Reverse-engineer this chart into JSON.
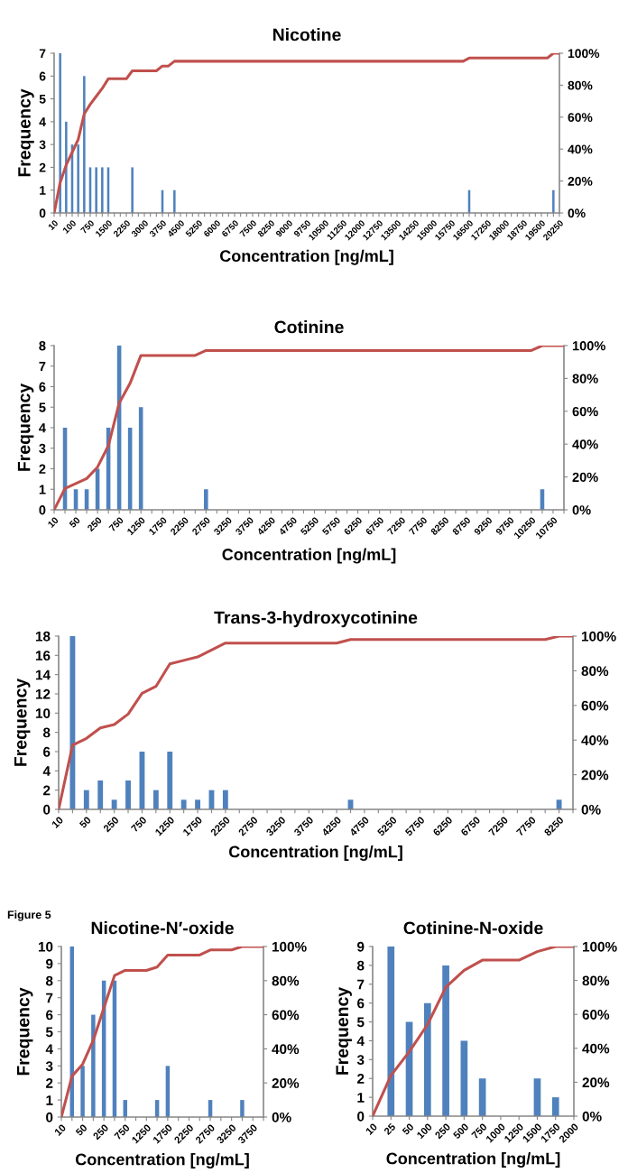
{
  "chart_data": [
    {
      "type": "bar",
      "title": "Nicotine",
      "xlabel": "Concentration [ng/mL]",
      "ylabel": "Frequency",
      "categories": [
        "10",
        null,
        null,
        "100",
        null,
        null,
        "750",
        null,
        null,
        "1500",
        null,
        null,
        "2250",
        null,
        null,
        "3000",
        null,
        null,
        "3750",
        null,
        null,
        "4500",
        null,
        null,
        "5250",
        null,
        null,
        "6000",
        null,
        null,
        "6750",
        null,
        null,
        "7500",
        null,
        null,
        "8250",
        null,
        null,
        "9000",
        null,
        null,
        "9750",
        null,
        null,
        "10500",
        null,
        null,
        "11250",
        null,
        null,
        "12000",
        null,
        null,
        "12750",
        null,
        null,
        "13500",
        null,
        null,
        "14250",
        null,
        null,
        "15000",
        null,
        null,
        "15750",
        null,
        null,
        "16500",
        null,
        null,
        "17250",
        null,
        null,
        "18000",
        null,
        null,
        "18750",
        null,
        null,
        "19500",
        null,
        null,
        "20250"
      ],
      "series": [
        {
          "color": "#4f81bd",
          "values": [
            0,
            7,
            4,
            3,
            3,
            6,
            2,
            2,
            2,
            2,
            0,
            0,
            0,
            2,
            0,
            0,
            0,
            0,
            1,
            0,
            1,
            0,
            0,
            0,
            0,
            0,
            0,
            0,
            0,
            0,
            0,
            0,
            0,
            0,
            0,
            0,
            0,
            0,
            0,
            0,
            0,
            0,
            0,
            0,
            0,
            0,
            0,
            0,
            0,
            0,
            0,
            0,
            0,
            0,
            0,
            0,
            0,
            0,
            0,
            0,
            0,
            0,
            0,
            0,
            0,
            0,
            0,
            0,
            0,
            1,
            0,
            0,
            0,
            0,
            0,
            0,
            0,
            0,
            0,
            0,
            0,
            0,
            0,
            1,
            0
          ]
        },
        {
          "type": "line",
          "axis": "y2",
          "color": "#c0504d",
          "values": [
            0,
            19,
            30,
            38,
            46,
            62,
            68,
            73,
            78,
            84,
            84,
            84,
            84,
            89,
            89,
            89,
            89,
            89,
            92,
            92,
            95,
            95,
            95,
            95,
            95,
            95,
            95,
            95,
            95,
            95,
            95,
            95,
            95,
            95,
            95,
            95,
            95,
            95,
            95,
            95,
            95,
            95,
            95,
            95,
            95,
            95,
            95,
            95,
            95,
            95,
            95,
            95,
            95,
            95,
            95,
            95,
            95,
            95,
            95,
            95,
            95,
            95,
            95,
            95,
            95,
            95,
            95,
            95,
            95,
            97,
            97,
            97,
            97,
            97,
            97,
            97,
            97,
            97,
            97,
            97,
            97,
            97,
            97,
            100,
            100
          ]
        }
      ],
      "ylim": [
        0,
        7
      ],
      "yticks": [
        0,
        1,
        2,
        3,
        4,
        5,
        6,
        7
      ],
      "y2lim": [
        0,
        100
      ],
      "y2ticks": [
        {
          "value": 0,
          "label": "0%"
        },
        {
          "value": 20,
          "label": "20%"
        },
        {
          "value": 40,
          "label": "40%"
        },
        {
          "value": 60,
          "label": "60%"
        },
        {
          "value": 80,
          "label": "80%"
        },
        {
          "value": 100,
          "label": "100%"
        }
      ]
    },
    {
      "type": "bar",
      "title": "Cotinine",
      "xlabel": "Concentration [ng/mL]",
      "ylabel": "Frequency",
      "categories": [
        "10",
        null,
        "50",
        null,
        "250",
        null,
        "750",
        null,
        "1250",
        null,
        "1750",
        null,
        "2250",
        null,
        "2750",
        null,
        "3250",
        null,
        "3750",
        null,
        "4250",
        null,
        "4750",
        null,
        "5250",
        null,
        "5750",
        null,
        "6250",
        null,
        "6750",
        null,
        "7250",
        null,
        "7750",
        null,
        "8250",
        null,
        "8750",
        null,
        "9250",
        null,
        "9750",
        null,
        "10250",
        null,
        "10750",
        null
      ],
      "series": [
        {
          "color": "#4f81bd",
          "values": [
            0,
            4,
            1,
            1,
            2,
            4,
            8,
            4,
            5,
            0,
            0,
            0,
            0,
            0,
            1,
            0,
            0,
            0,
            0,
            0,
            0,
            0,
            0,
            0,
            0,
            0,
            0,
            0,
            0,
            0,
            0,
            0,
            0,
            0,
            0,
            0,
            0,
            0,
            0,
            0,
            0,
            0,
            0,
            0,
            0,
            1,
            0,
            0
          ]
        },
        {
          "type": "line",
          "axis": "y2",
          "color": "#c0504d",
          "values": [
            0,
            13,
            16,
            19,
            26,
            39,
            65,
            77,
            94,
            94,
            94,
            94,
            94,
            94,
            97,
            97,
            97,
            97,
            97,
            97,
            97,
            97,
            97,
            97,
            97,
            97,
            97,
            97,
            97,
            97,
            97,
            97,
            97,
            97,
            97,
            97,
            97,
            97,
            97,
            97,
            97,
            97,
            97,
            97,
            97,
            100,
            100,
            100
          ]
        }
      ],
      "ylim": [
        0,
        8
      ],
      "yticks": [
        0,
        1,
        2,
        3,
        4,
        5,
        6,
        7,
        8
      ],
      "y2lim": [
        0,
        100
      ],
      "y2ticks": [
        {
          "value": 0,
          "label": "0%"
        },
        {
          "value": 20,
          "label": "20%"
        },
        {
          "value": 40,
          "label": "40%"
        },
        {
          "value": 60,
          "label": "60%"
        },
        {
          "value": 80,
          "label": "80%"
        },
        {
          "value": 100,
          "label": "100%"
        }
      ]
    },
    {
      "type": "bar",
      "title": "Trans-3-hydroxycotinine",
      "xlabel": "Concentration [ng/mL]",
      "ylabel": "Frequency",
      "categories": [
        "10",
        null,
        "50",
        null,
        "250",
        null,
        "750",
        null,
        "1250",
        null,
        "1750",
        null,
        "2250",
        null,
        "2750",
        null,
        "3250",
        null,
        "3750",
        null,
        "4250",
        null,
        "4750",
        null,
        "5250",
        null,
        "5750",
        null,
        "6250",
        null,
        "6750",
        null,
        "7250",
        null,
        "7750",
        null,
        "8250",
        null
      ],
      "series": [
        {
          "color": "#4f81bd",
          "values": [
            0,
            18,
            2,
            3,
            1,
            3,
            6,
            2,
            6,
            1,
            1,
            2,
            2,
            0,
            0,
            0,
            0,
            0,
            0,
            0,
            0,
            1,
            0,
            0,
            0,
            0,
            0,
            0,
            0,
            0,
            0,
            0,
            0,
            0,
            0,
            0,
            1,
            0
          ]
        },
        {
          "type": "line",
          "axis": "y2",
          "color": "#c0504d",
          "values": [
            0,
            37,
            41,
            47,
            49,
            55,
            67,
            71,
            84,
            86,
            88,
            92,
            96,
            96,
            96,
            96,
            96,
            96,
            96,
            96,
            96,
            98,
            98,
            98,
            98,
            98,
            98,
            98,
            98,
            98,
            98,
            98,
            98,
            98,
            98,
            98,
            100,
            100
          ]
        }
      ],
      "ylim": [
        0,
        18
      ],
      "yticks": [
        0,
        2,
        4,
        6,
        8,
        10,
        12,
        14,
        16,
        18
      ],
      "y2lim": [
        0,
        100
      ],
      "y2ticks": [
        {
          "value": 0,
          "label": "0%"
        },
        {
          "value": 20,
          "label": "20%"
        },
        {
          "value": 40,
          "label": "40%"
        },
        {
          "value": 60,
          "label": "60%"
        },
        {
          "value": 80,
          "label": "80%"
        },
        {
          "value": 100,
          "label": "100%"
        }
      ]
    },
    {
      "type": "bar",
      "title": "Nicotine-N′-oxide",
      "xlabel": "Concentration [ng/mL]",
      "ylabel": "Frequency",
      "annotations": [
        "Figure 5"
      ],
      "categories": [
        "10",
        null,
        "50",
        null,
        "250",
        null,
        "750",
        null,
        "1250",
        null,
        "1750",
        null,
        "2250",
        null,
        "2750",
        null,
        "3250",
        null,
        "3750",
        null
      ],
      "series": [
        {
          "color": "#4f81bd",
          "values": [
            0,
            10,
            3,
            6,
            8,
            8,
            1,
            0,
            0,
            1,
            3,
            0,
            0,
            0,
            1,
            0,
            0,
            1,
            0,
            0
          ]
        },
        {
          "type": "line",
          "axis": "y2",
          "color": "#c0504d",
          "values": [
            0,
            24,
            31,
            45,
            64,
            83,
            86,
            86,
            86,
            88,
            95,
            95,
            95,
            95,
            98,
            98,
            98,
            100,
            100,
            100
          ]
        }
      ],
      "ylim": [
        0,
        10
      ],
      "yticks": [
        0,
        1,
        2,
        3,
        4,
        5,
        6,
        7,
        8,
        9,
        10
      ],
      "y2lim": [
        0,
        100
      ],
      "y2ticks": [
        {
          "value": 0,
          "label": "0%"
        },
        {
          "value": 20,
          "label": "20%"
        },
        {
          "value": 40,
          "label": "40%"
        },
        {
          "value": 60,
          "label": "60%"
        },
        {
          "value": 80,
          "label": "80%"
        },
        {
          "value": 100,
          "label": "100%"
        }
      ]
    },
    {
      "type": "bar",
      "title": "Cotinine-N-oxide",
      "xlabel": "Concentration [ng/mL]",
      "ylabel": "Frequency",
      "categories": [
        "10",
        "25",
        "50",
        "100",
        "250",
        "500",
        "750",
        "1000",
        "1250",
        "1500",
        "1750",
        "2000"
      ],
      "series": [
        {
          "color": "#4f81bd",
          "values": [
            0,
            9,
            5,
            6,
            8,
            4,
            2,
            0,
            0,
            2,
            1,
            0
          ]
        },
        {
          "type": "line",
          "axis": "y2",
          "color": "#c0504d",
          "values": [
            0,
            24,
            38,
            54,
            76,
            86,
            92,
            92,
            92,
            97,
            100,
            100
          ]
        }
      ],
      "ylim": [
        0,
        9
      ],
      "yticks": [
        0,
        1,
        2,
        3,
        4,
        5,
        6,
        7,
        8,
        9
      ],
      "y2lim": [
        0,
        100
      ],
      "y2ticks": [
        {
          "value": 0,
          "label": "0%"
        },
        {
          "value": 20,
          "label": "20%"
        },
        {
          "value": 40,
          "label": "40%"
        },
        {
          "value": 60,
          "label": "60%"
        },
        {
          "value": 80,
          "label": "80%"
        },
        {
          "value": 100,
          "label": "100%"
        }
      ]
    }
  ]
}
